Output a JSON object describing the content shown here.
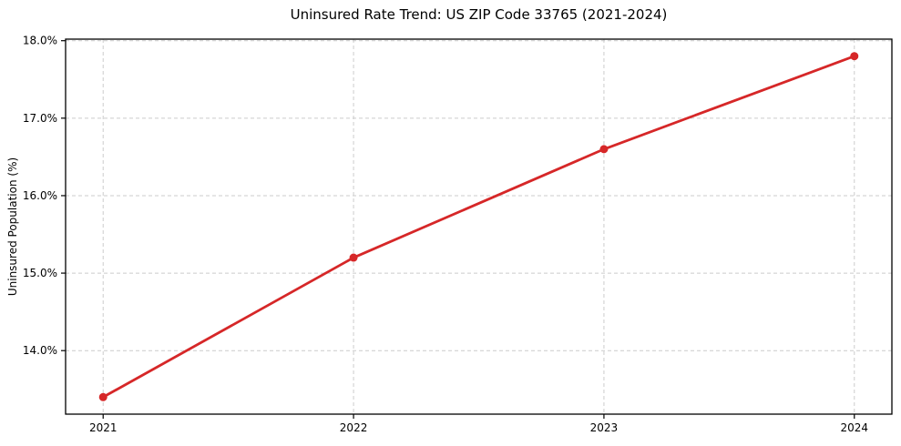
{
  "chart_data": {
    "type": "line",
    "title": "Uninsured Rate Trend: US ZIP Code 33765 (2021-2024)",
    "xlabel": "",
    "ylabel": "Uninsured Population (%)",
    "x": [
      2021,
      2022,
      2023,
      2024
    ],
    "values": [
      13.4,
      15.2,
      16.6,
      17.8
    ],
    "xlim": [
      2020.85,
      2024.15
    ],
    "ylim": [
      13.18,
      18.02
    ],
    "xticks": [
      {
        "value": 2021,
        "label": "2021"
      },
      {
        "value": 2022,
        "label": "2022"
      },
      {
        "value": 2023,
        "label": "2023"
      },
      {
        "value": 2024,
        "label": "2024"
      }
    ],
    "yticks": [
      {
        "value": 14.0,
        "label": "14.0%"
      },
      {
        "value": 15.0,
        "label": "15.0%"
      },
      {
        "value": 16.0,
        "label": "16.0%"
      },
      {
        "value": 17.0,
        "label": "17.0%"
      },
      {
        "value": 18.0,
        "label": "18.0%"
      }
    ],
    "grid": "dashed-both-axes",
    "legend": "none",
    "marker": "circle",
    "colors": {
      "line": "#d62728",
      "marker": "#d62728",
      "grid": "#cccccc",
      "spine": "#000000",
      "text": "#000000",
      "background": "#ffffff"
    }
  }
}
